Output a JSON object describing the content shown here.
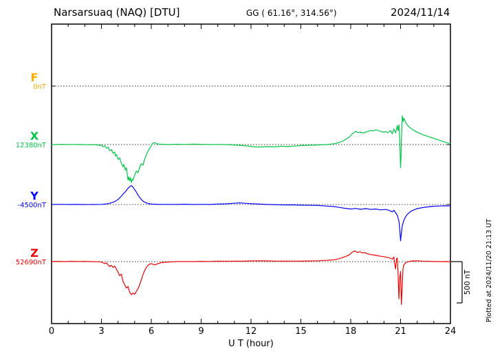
{
  "header": {
    "station": "Narsarsuaq (NAQ)  [DTU]",
    "coords": "GG ( 61.16°, 314.56°)",
    "date": "2024/11/14"
  },
  "axis": {
    "xlabel": "U T (hour)",
    "x_ticks": [
      0,
      3,
      6,
      9,
      12,
      15,
      18,
      21,
      24
    ],
    "x_minor_step": 1,
    "x_range": [
      0,
      24
    ]
  },
  "scale_bar": {
    "label": "500 nT",
    "nT": 500
  },
  "footer_note": "Plotted at 2024/11/20 21:13 UT",
  "chart_data": {
    "type": "line",
    "title": "Narsarsuaq (NAQ) [DTU] magnetogram 2024/11/14",
    "xlabel": "U T (hour)",
    "x_range": [
      0,
      24
    ],
    "x_unit": "hour (UT)",
    "value_unit": "nT offset from component baseline",
    "grid": "dotted baseline per component",
    "series": [
      {
        "name": "F",
        "label": "F",
        "baseline_label": "0nT",
        "color": "#ffaa00",
        "points": []
      },
      {
        "name": "X",
        "label": "X",
        "baseline_label": "12380nT",
        "color": "#00c846",
        "points": [
          [
            0,
            2
          ],
          [
            0.3,
            0
          ],
          [
            0.6,
            3
          ],
          [
            0.9,
            0
          ],
          [
            1.2,
            2
          ],
          [
            1.5,
            0
          ],
          [
            1.8,
            1
          ],
          [
            2.1,
            -2
          ],
          [
            2.4,
            0
          ],
          [
            2.7,
            -3
          ],
          [
            2.9,
            -8
          ],
          [
            3.0,
            -5
          ],
          [
            3.1,
            -25
          ],
          [
            3.2,
            -15
          ],
          [
            3.3,
            -45
          ],
          [
            3.4,
            -30
          ],
          [
            3.5,
            -75
          ],
          [
            3.6,
            -60
          ],
          [
            3.7,
            -105
          ],
          [
            3.8,
            -90
          ],
          [
            3.85,
            -140
          ],
          [
            3.9,
            -120
          ],
          [
            4.0,
            -180
          ],
          [
            4.1,
            -160
          ],
          [
            4.2,
            -230
          ],
          [
            4.3,
            -270
          ],
          [
            4.35,
            -240
          ],
          [
            4.45,
            -310
          ],
          [
            4.5,
            -280
          ],
          [
            4.55,
            -360
          ],
          [
            4.6,
            -430
          ],
          [
            4.65,
            -390
          ],
          [
            4.7,
            -440
          ],
          [
            4.75,
            -400
          ],
          [
            4.8,
            -460
          ],
          [
            4.85,
            -420
          ],
          [
            4.9,
            -430
          ],
          [
            5.0,
            -370
          ],
          [
            5.1,
            -320
          ],
          [
            5.2,
            -340
          ],
          [
            5.3,
            -280
          ],
          [
            5.4,
            -230
          ],
          [
            5.5,
            -250
          ],
          [
            5.6,
            -180
          ],
          [
            5.7,
            -120
          ],
          [
            5.8,
            -80
          ],
          [
            5.9,
            -45
          ],
          [
            6.0,
            -15
          ],
          [
            6.05,
            10
          ],
          [
            6.2,
            25
          ],
          [
            6.3,
            10
          ],
          [
            6.5,
            5
          ],
          [
            7,
            0
          ],
          [
            7.5,
            4
          ],
          [
            8,
            2
          ],
          [
            8.5,
            5
          ],
          [
            9,
            3
          ],
          [
            9.5,
            0
          ],
          [
            10,
            2
          ],
          [
            10.5,
            0
          ],
          [
            11,
            -5
          ],
          [
            11.5,
            -12
          ],
          [
            12,
            -22
          ],
          [
            12.3,
            -30
          ],
          [
            12.6,
            -28
          ],
          [
            13,
            -25
          ],
          [
            13.4,
            -28
          ],
          [
            13.8,
            -20
          ],
          [
            14.2,
            -24
          ],
          [
            14.6,
            -18
          ],
          [
            15,
            -12
          ],
          [
            15.5,
            -8
          ],
          [
            16,
            -5
          ],
          [
            16.5,
            0
          ],
          [
            17,
            10
          ],
          [
            17.3,
            25
          ],
          [
            17.6,
            50
          ],
          [
            17.9,
            90
          ],
          [
            18.1,
            130
          ],
          [
            18.3,
            160
          ],
          [
            18.45,
            145
          ],
          [
            18.6,
            150
          ],
          [
            18.75,
            140
          ],
          [
            18.9,
            150
          ],
          [
            19.05,
            160
          ],
          [
            19.2,
            170
          ],
          [
            19.35,
            165
          ],
          [
            19.5,
            178
          ],
          [
            19.65,
            170
          ],
          [
            19.8,
            160
          ],
          [
            19.95,
            150
          ],
          [
            20.1,
            155
          ],
          [
            20.25,
            145
          ],
          [
            20.4,
            170
          ],
          [
            20.5,
            130
          ],
          [
            20.6,
            190
          ],
          [
            20.7,
            140
          ],
          [
            20.8,
            230
          ],
          [
            20.85,
            170
          ],
          [
            20.9,
            240
          ],
          [
            20.95,
            60
          ],
          [
            21.0,
            -280
          ],
          [
            21.03,
            -150
          ],
          [
            21.06,
            120
          ],
          [
            21.1,
            350
          ],
          [
            21.15,
            280
          ],
          [
            21.2,
            320
          ],
          [
            21.3,
            270
          ],
          [
            21.4,
            240
          ],
          [
            21.5,
            215
          ],
          [
            21.7,
            185
          ],
          [
            21.9,
            160
          ],
          [
            22.1,
            140
          ],
          [
            22.4,
            115
          ],
          [
            22.7,
            95
          ],
          [
            23,
            75
          ],
          [
            23.3,
            55
          ],
          [
            23.6,
            35
          ],
          [
            23.8,
            20
          ],
          [
            24,
            12
          ]
        ]
      },
      {
        "name": "Y",
        "label": "Y",
        "baseline_label": "-4500nT",
        "color": "#0000ff",
        "points": [
          [
            0,
            0
          ],
          [
            0.5,
            2
          ],
          [
            1,
            0
          ],
          [
            1.5,
            1
          ],
          [
            2,
            -1
          ],
          [
            2.5,
            0
          ],
          [
            3,
            2
          ],
          [
            3.2,
            5
          ],
          [
            3.4,
            10
          ],
          [
            3.6,
            20
          ],
          [
            3.8,
            35
          ],
          [
            4.0,
            60
          ],
          [
            4.1,
            80
          ],
          [
            4.2,
            100
          ],
          [
            4.3,
            125
          ],
          [
            4.4,
            145
          ],
          [
            4.5,
            170
          ],
          [
            4.6,
            195
          ],
          [
            4.7,
            215
          ],
          [
            4.8,
            228
          ],
          [
            4.9,
            210
          ],
          [
            5.0,
            180
          ],
          [
            5.1,
            150
          ],
          [
            5.2,
            115
          ],
          [
            5.3,
            85
          ],
          [
            5.4,
            60
          ],
          [
            5.5,
            40
          ],
          [
            5.6,
            28
          ],
          [
            5.8,
            12
          ],
          [
            6,
            5
          ],
          [
            6.5,
            0
          ],
          [
            7,
            2
          ],
          [
            7.5,
            0
          ],
          [
            8,
            3
          ],
          [
            8.5,
            0
          ],
          [
            9,
            2
          ],
          [
            9.5,
            0
          ],
          [
            10,
            5
          ],
          [
            10.5,
            8
          ],
          [
            11,
            15
          ],
          [
            11.3,
            20
          ],
          [
            11.6,
            15
          ],
          [
            12,
            10
          ],
          [
            12.5,
            5
          ],
          [
            13,
            0
          ],
          [
            13.5,
            -3
          ],
          [
            14,
            -5
          ],
          [
            14.5,
            -4
          ],
          [
            15,
            -8
          ],
          [
            15.5,
            -10
          ],
          [
            16,
            -12
          ],
          [
            16.5,
            -18
          ],
          [
            17,
            -25
          ],
          [
            17.3,
            -35
          ],
          [
            17.6,
            -45
          ],
          [
            18,
            -55
          ],
          [
            18.3,
            -48
          ],
          [
            18.6,
            -58
          ],
          [
            18.9,
            -50
          ],
          [
            19.2,
            -60
          ],
          [
            19.5,
            -55
          ],
          [
            19.8,
            -65
          ],
          [
            20.1,
            -60
          ],
          [
            20.3,
            -70
          ],
          [
            20.5,
            -90
          ],
          [
            20.6,
            -70
          ],
          [
            20.7,
            -100
          ],
          [
            20.8,
            -130
          ],
          [
            20.9,
            -200
          ],
          [
            20.95,
            -300
          ],
          [
            21.0,
            -440
          ],
          [
            21.05,
            -350
          ],
          [
            21.1,
            -260
          ],
          [
            21.2,
            -190
          ],
          [
            21.3,
            -150
          ],
          [
            21.4,
            -120
          ],
          [
            21.6,
            -85
          ],
          [
            21.8,
            -65
          ],
          [
            22,
            -50
          ],
          [
            22.3,
            -38
          ],
          [
            22.6,
            -30
          ],
          [
            23,
            -22
          ],
          [
            23.4,
            -18
          ],
          [
            23.7,
            -16
          ],
          [
            24,
            -18
          ]
        ]
      },
      {
        "name": "Z",
        "label": "Z",
        "baseline_label": "52690nT",
        "color": "#ee0000",
        "points": [
          [
            0,
            0
          ],
          [
            0.4,
            3
          ],
          [
            0.8,
            0
          ],
          [
            1.2,
            4
          ],
          [
            1.6,
            1
          ],
          [
            2,
            3
          ],
          [
            2.4,
            0
          ],
          [
            2.8,
            -2
          ],
          [
            3.0,
            -5
          ],
          [
            3.2,
            -25
          ],
          [
            3.3,
            -15
          ],
          [
            3.4,
            -40
          ],
          [
            3.5,
            -60
          ],
          [
            3.6,
            -45
          ],
          [
            3.7,
            -70
          ],
          [
            3.8,
            -55
          ],
          [
            3.9,
            -90
          ],
          [
            4.0,
            -130
          ],
          [
            4.1,
            -170
          ],
          [
            4.2,
            -150
          ],
          [
            4.3,
            -240
          ],
          [
            4.4,
            -280
          ],
          [
            4.5,
            -320
          ],
          [
            4.6,
            -300
          ],
          [
            4.7,
            -370
          ],
          [
            4.8,
            -400
          ],
          [
            4.9,
            -380
          ],
          [
            5.0,
            -395
          ],
          [
            5.1,
            -360
          ],
          [
            5.2,
            -330
          ],
          [
            5.3,
            -280
          ],
          [
            5.4,
            -220
          ],
          [
            5.5,
            -160
          ],
          [
            5.6,
            -110
          ],
          [
            5.7,
            -70
          ],
          [
            5.8,
            -45
          ],
          [
            5.9,
            -30
          ],
          [
            6.0,
            -25
          ],
          [
            6.2,
            -40
          ],
          [
            6.4,
            -25
          ],
          [
            6.6,
            -12
          ],
          [
            6.8,
            -8
          ],
          [
            7,
            -5
          ],
          [
            7.5,
            0
          ],
          [
            8,
            2
          ],
          [
            8.5,
            0
          ],
          [
            9,
            3
          ],
          [
            9.5,
            2
          ],
          [
            10,
            5
          ],
          [
            10.5,
            4
          ],
          [
            11,
            6
          ],
          [
            11.5,
            5
          ],
          [
            12,
            8
          ],
          [
            12.5,
            10
          ],
          [
            13,
            8
          ],
          [
            13.5,
            6
          ],
          [
            14,
            5
          ],
          [
            14.5,
            6
          ],
          [
            15,
            5
          ],
          [
            15.5,
            8
          ],
          [
            16,
            10
          ],
          [
            16.5,
            15
          ],
          [
            17,
            22
          ],
          [
            17.3,
            35
          ],
          [
            17.6,
            55
          ],
          [
            17.9,
            80
          ],
          [
            18.1,
            115
          ],
          [
            18.25,
            130
          ],
          [
            18.4,
            110
          ],
          [
            18.55,
            120
          ],
          [
            18.7,
            105
          ],
          [
            18.85,
            110
          ],
          [
            19,
            95
          ],
          [
            19.2,
            85
          ],
          [
            19.4,
            80
          ],
          [
            19.6,
            72
          ],
          [
            19.8,
            65
          ],
          [
            20,
            60
          ],
          [
            20.2,
            52
          ],
          [
            20.35,
            45
          ],
          [
            20.5,
            30
          ],
          [
            20.6,
            55
          ],
          [
            20.65,
            -30
          ],
          [
            20.7,
            -90
          ],
          [
            20.75,
            30
          ],
          [
            20.8,
            45
          ],
          [
            20.85,
            -150
          ],
          [
            20.9,
            -450
          ],
          [
            20.95,
            -200
          ],
          [
            21.0,
            -120
          ],
          [
            21.05,
            -520
          ],
          [
            21.1,
            -300
          ],
          [
            21.15,
            -80
          ],
          [
            21.2,
            -40
          ],
          [
            21.3,
            -15
          ],
          [
            21.4,
            -5
          ],
          [
            21.6,
            5
          ],
          [
            21.8,
            8
          ],
          [
            22,
            10
          ],
          [
            22.3,
            6
          ],
          [
            22.6,
            4
          ],
          [
            23,
            2
          ],
          [
            23.4,
            0
          ],
          [
            23.7,
            1
          ],
          [
            24,
            0
          ]
        ]
      }
    ]
  }
}
